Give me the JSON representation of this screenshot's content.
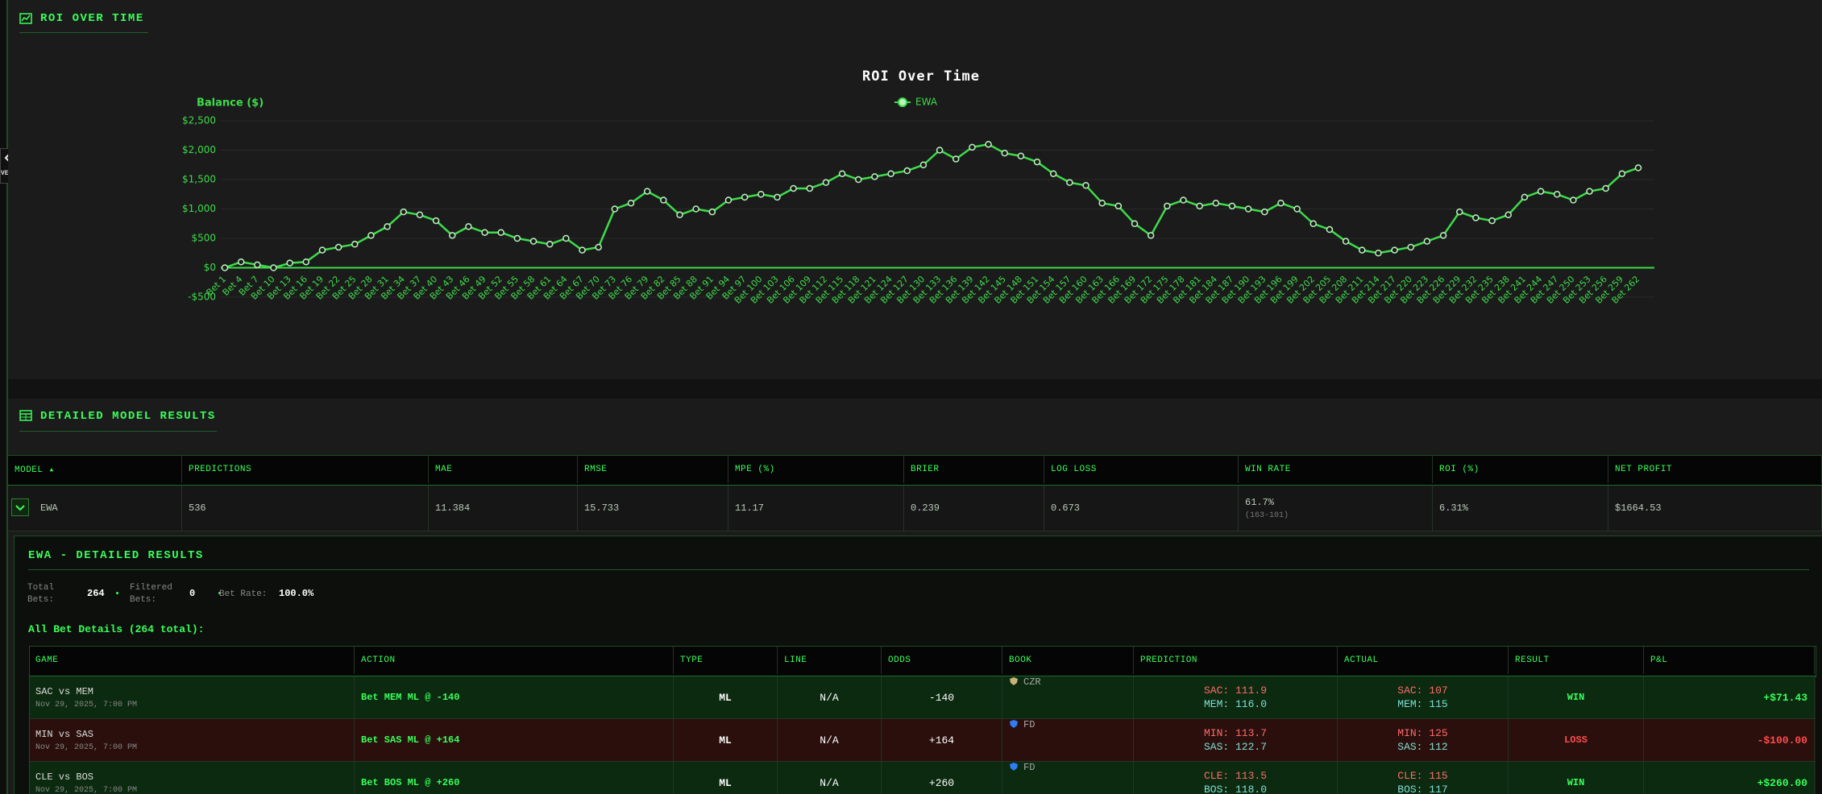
{
  "nav": {
    "tab": "VENTS"
  },
  "roi_panel": {
    "heading": "ROI OVER TIME"
  },
  "chart_data": {
    "type": "line",
    "title": "ROI Over Time",
    "y_label": "Balance ($)",
    "grid": true,
    "categories": [
      "Bet 1",
      "Bet 4",
      "Bet 7",
      "Bet 10",
      "Bet 13",
      "Bet 16",
      "Bet 19",
      "Bet 22",
      "Bet 25",
      "Bet 28",
      "Bet 31",
      "Bet 34",
      "Bet 37",
      "Bet 40",
      "Bet 43",
      "Bet 46",
      "Bet 49",
      "Bet 52",
      "Bet 55",
      "Bet 58",
      "Bet 61",
      "Bet 64",
      "Bet 67",
      "Bet 70",
      "Bet 73",
      "Bet 76",
      "Bet 79",
      "Bet 82",
      "Bet 85",
      "Bet 88",
      "Bet 91",
      "Bet 94",
      "Bet 97",
      "Bet 100",
      "Bet 103",
      "Bet 106",
      "Bet 109",
      "Bet 112",
      "Bet 115",
      "Bet 118",
      "Bet 121",
      "Bet 124",
      "Bet 127",
      "Bet 130",
      "Bet 133",
      "Bet 136",
      "Bet 139",
      "Bet 142",
      "Bet 145",
      "Bet 148",
      "Bet 151",
      "Bet 154",
      "Bet 157",
      "Bet 160",
      "Bet 163",
      "Bet 166",
      "Bet 169",
      "Bet 172",
      "Bet 175",
      "Bet 178",
      "Bet 181",
      "Bet 184",
      "Bet 187",
      "Bet 190",
      "Bet 193",
      "Bet 196",
      "Bet 199",
      "Bet 202",
      "Bet 205",
      "Bet 208",
      "Bet 211",
      "Bet 214",
      "Bet 217",
      "Bet 220",
      "Bet 223",
      "Bet 226",
      "Bet 229",
      "Bet 232",
      "Bet 235",
      "Bet 238",
      "Bet 241",
      "Bet 244",
      "Bet 247",
      "Bet 250",
      "Bet 253",
      "Bet 256",
      "Bet 259",
      "Bet 262"
    ],
    "series": [
      {
        "name": "EWA",
        "color": "#3ddc4a",
        "values": [
          0,
          100,
          50,
          0,
          80,
          100,
          300,
          350,
          400,
          550,
          700,
          950,
          900,
          800,
          550,
          700,
          600,
          600,
          500,
          450,
          400,
          500,
          300,
          350,
          1000,
          1100,
          1300,
          1150,
          900,
          1000,
          950,
          1150,
          1200,
          1250,
          1200,
          1350,
          1350,
          1450,
          1600,
          1500,
          1550,
          1600,
          1650,
          1750,
          2000,
          1850,
          2050,
          2100,
          1950,
          1900,
          1800,
          1600,
          1450,
          1400,
          1100,
          1050,
          750,
          550,
          1050,
          1150,
          1050,
          1100,
          1050,
          1000,
          950,
          1100,
          1000,
          750,
          650,
          450,
          300,
          250,
          300,
          350,
          450,
          550,
          950,
          850,
          800,
          900,
          1200,
          1300,
          1250,
          1150,
          1300,
          1350,
          1600,
          1700
        ]
      }
    ],
    "ylim": [
      -500,
      2500
    ],
    "yticks": [
      {
        "value": -500,
        "label": "-$500"
      },
      {
        "value": 0,
        "label": "$0"
      },
      {
        "value": 500,
        "label": "$500"
      },
      {
        "value": 1000,
        "label": "$1,000"
      },
      {
        "value": 1500,
        "label": "$1,500"
      },
      {
        "value": 2000,
        "label": "$2,000"
      },
      {
        "value": 2500,
        "label": "$2,500"
      }
    ]
  },
  "results_panel": {
    "heading": "DETAILED MODEL RESULTS",
    "columns": [
      "MODEL ▴",
      "PREDICTIONS",
      "MAE",
      "RMSE",
      "MPE (%)",
      "BRIER",
      "LOG LOSS",
      "WIN RATE",
      "ROI (%)",
      "NET PROFIT"
    ],
    "rows": [
      [
        [
          "EWA"
        ],
        [
          "536"
        ],
        [
          "11.384"
        ],
        [
          "15.733"
        ],
        [
          "11.17"
        ],
        [
          "0.239"
        ],
        [
          "0.673"
        ],
        [
          "61.7%",
          "(163-101)"
        ],
        [
          "6.31%"
        ],
        [
          "$1664.53"
        ]
      ]
    ]
  },
  "detail": {
    "title": "EWA - DETAILED RESULTS",
    "stats": [
      {
        "label": "Total Bets:",
        "value": "264"
      },
      {
        "label": "Filtered Bets:",
        "value": "0"
      },
      {
        "label": "Bet Rate:",
        "value": "100.0%"
      }
    ],
    "subtitle": "All Bet Details (264 total):",
    "columns": [
      "GAME",
      "ACTION",
      "TYPE",
      "LINE",
      "ODDS",
      "BOOK",
      "PREDICTION",
      "ACTUAL",
      "RESULT",
      "P&L"
    ],
    "rows": [
      {
        "game": "SAC vs MEM",
        "date": "Nov 29, 2025, 7:00 PM",
        "action": "Bet MEM ML @ -140",
        "type": "ML",
        "line": "N/A",
        "odds": "-140",
        "book": "CZR",
        "prediction": [
          "SAC: 111.9",
          "MEM: 116.0"
        ],
        "actual": [
          "SAC: 107",
          "MEM: 115"
        ],
        "result": "WIN",
        "pnl": "+$71.43"
      },
      {
        "game": "MIN vs SAS",
        "date": "Nov 29, 2025, 7:00 PM",
        "action": "Bet SAS ML @ +164",
        "type": "ML",
        "line": "N/A",
        "odds": "+164",
        "book": "FD",
        "prediction": [
          "MIN: 113.7",
          "SAS: 122.7"
        ],
        "actual": [
          "MIN: 125",
          "SAS: 112"
        ],
        "result": "LOSS",
        "pnl": "-$100.00"
      },
      {
        "game": "CLE vs BOS",
        "date": "Nov 29, 2025, 7:00 PM",
        "action": "Bet BOS ML @ +260",
        "type": "ML",
        "line": "N/A",
        "odds": "+260",
        "book": "FD",
        "prediction": [
          "CLE: 113.5",
          "BOS: 118.0"
        ],
        "actual": [
          "CLE: 115",
          "BOS: 117"
        ],
        "result": "WIN",
        "pnl": "+$260.00"
      }
    ]
  }
}
